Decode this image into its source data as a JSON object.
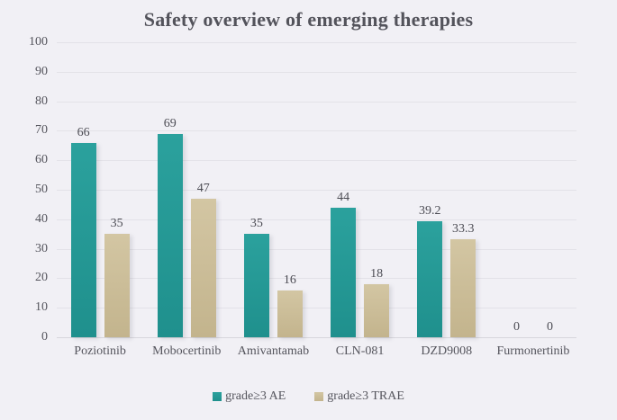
{
  "chart_data": {
    "type": "bar",
    "title": "Safety overview of emerging therapies",
    "categories": [
      "Poziotinib",
      "Mobocertinib",
      "Amivantamab",
      "CLN-081",
      "DZD9008",
      "Furmonertinib"
    ],
    "series": [
      {
        "name": "grade≥3 AE",
        "color_top": "#2ba19d",
        "color_bottom": "#1f908d",
        "values": [
          66,
          69,
          35,
          44,
          39.2,
          0
        ]
      },
      {
        "name": "grade≥3 TRAE",
        "color_top": "#d3c6a3",
        "color_bottom": "#c3b48d",
        "values": [
          35,
          47,
          16,
          18,
          33.3,
          0
        ]
      }
    ],
    "ylim": [
      0,
      100
    ],
    "yticks": [
      0,
      10,
      20,
      30,
      40,
      50,
      60,
      70,
      80,
      90,
      100
    ],
    "grid": true,
    "data_labels": true,
    "legend_position": "bottom",
    "background": "#f1f0f5"
  }
}
